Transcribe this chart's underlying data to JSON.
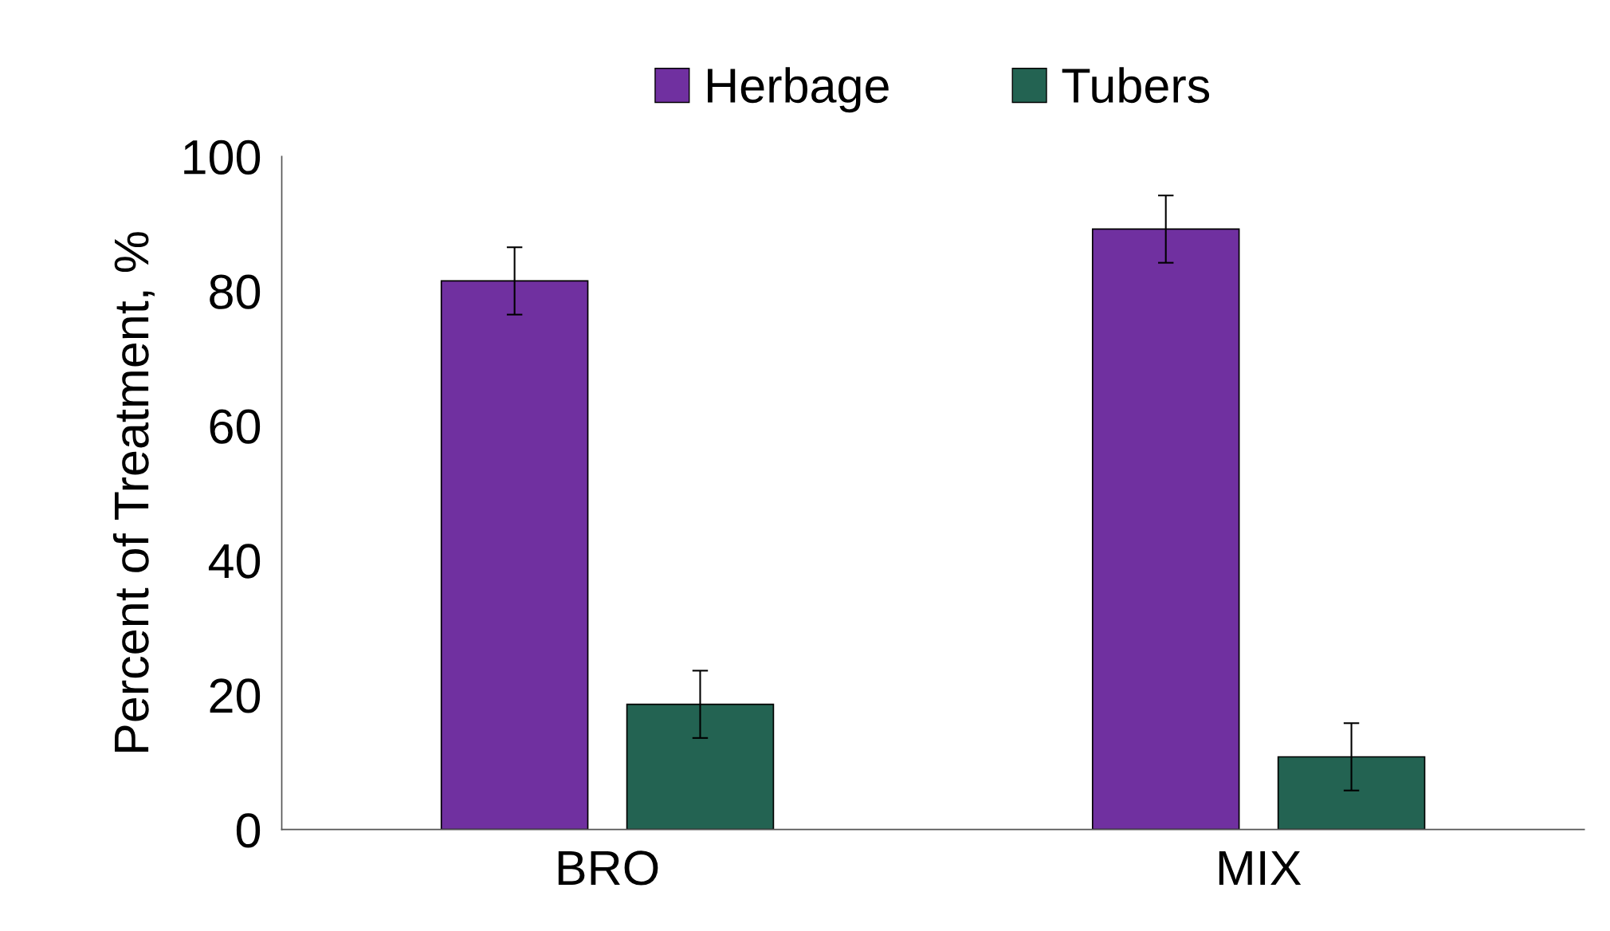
{
  "chart_data": {
    "type": "bar",
    "ylabel": "Percent of Treatment, %",
    "categories": [
      "BRO",
      "MIX"
    ],
    "series": [
      {
        "name": "Herbage",
        "color": "#7030a0",
        "values": [
          81.5,
          89.2
        ],
        "errors": [
          5,
          5
        ]
      },
      {
        "name": "Tubers",
        "color": "#236352",
        "values": [
          18.6,
          10.8
        ],
        "errors": [
          5,
          5
        ]
      }
    ],
    "ylim": [
      0,
      100
    ],
    "yticks": [
      0,
      20,
      40,
      60,
      80,
      100
    ],
    "grid": false,
    "legend": "top"
  }
}
